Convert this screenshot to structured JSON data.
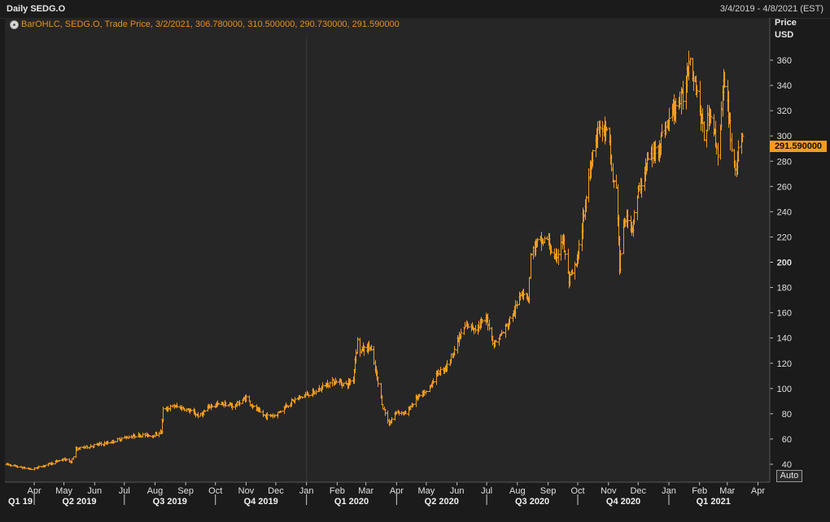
{
  "header": {
    "title": "Daily SEDG.O",
    "date_range": "3/4/2019 - 4/8/2021 (EST)"
  },
  "legend": {
    "text": "BarOHLC, SEDG.O, Trade Price, 3/2/2021, 306.780000, 310.500000, 290.730000, 291.590000"
  },
  "axis": {
    "y_title_line1": "Price",
    "y_title_line2": "USD",
    "last_price_label": "291.590000",
    "auto_label": "Auto"
  },
  "colors": {
    "bars": "#f39c1f",
    "background": "#262626",
    "accent": "#f39c1f"
  },
  "chart_data": {
    "type": "bar",
    "series_name": "SEDG.O",
    "ylim": [
      30,
      380
    ],
    "y_ticks": [
      40,
      60,
      80,
      100,
      120,
      140,
      160,
      180,
      200,
      220,
      240,
      260,
      280,
      300,
      320,
      340,
      360
    ],
    "last_price": 291.59,
    "month_labels": [
      "Apr",
      "May",
      "Jun",
      "Jul",
      "Aug",
      "Sep",
      "Oct",
      "Nov",
      "Dec",
      "Jan",
      "Feb",
      "Mar",
      "Apr",
      "May",
      "Jun",
      "Jul",
      "Aug",
      "Sep",
      "Oct",
      "Nov",
      "Dec",
      "Jan",
      "Feb",
      "Mar",
      "Apr"
    ],
    "quarter_labels": [
      "Q1 19",
      "Q2 2019",
      "Q3 2019",
      "Q4 2019",
      "Q1 2020",
      "Q2 2020",
      "Q3 2020",
      "Q4 2020",
      "Q1 2021"
    ],
    "x_start": "2019-03-04",
    "x_end": "2021-04-08",
    "price_points": [
      [
        "2019-03-04",
        40
      ],
      [
        "2019-03-15",
        38
      ],
      [
        "2019-03-29",
        36
      ],
      [
        "2019-04-15",
        40
      ],
      [
        "2019-04-30",
        44
      ],
      [
        "2019-05-08",
        42
      ],
      [
        "2019-05-13",
        52
      ],
      [
        "2019-05-31",
        55
      ],
      [
        "2019-06-15",
        57
      ],
      [
        "2019-06-30",
        61
      ],
      [
        "2019-07-15",
        63
      ],
      [
        "2019-07-31",
        63
      ],
      [
        "2019-08-07",
        66
      ],
      [
        "2019-08-09",
        83
      ],
      [
        "2019-08-20",
        86
      ],
      [
        "2019-08-31",
        84
      ],
      [
        "2019-09-15",
        78
      ],
      [
        "2019-09-25",
        86
      ],
      [
        "2019-10-08",
        88
      ],
      [
        "2019-10-20",
        86
      ],
      [
        "2019-11-01",
        93
      ],
      [
        "2019-11-08",
        85
      ],
      [
        "2019-11-20",
        78
      ],
      [
        "2019-12-01",
        79
      ],
      [
        "2019-12-10",
        86
      ],
      [
        "2019-12-20",
        91
      ],
      [
        "2019-12-31",
        95
      ],
      [
        "2020-01-10",
        97
      ],
      [
        "2020-01-20",
        103
      ],
      [
        "2020-01-31",
        106
      ],
      [
        "2020-02-10",
        103
      ],
      [
        "2020-02-17",
        108
      ],
      [
        "2020-02-21",
        138
      ],
      [
        "2020-02-24",
        130
      ],
      [
        "2020-03-05",
        133
      ],
      [
        "2020-03-10",
        115
      ],
      [
        "2020-03-18",
        85
      ],
      [
        "2020-03-24",
        72
      ],
      [
        "2020-04-01",
        82
      ],
      [
        "2020-04-10",
        80
      ],
      [
        "2020-04-20",
        92
      ],
      [
        "2020-05-01",
        97
      ],
      [
        "2020-05-12",
        112
      ],
      [
        "2020-05-22",
        118
      ],
      [
        "2020-06-01",
        137
      ],
      [
        "2020-06-10",
        150
      ],
      [
        "2020-06-20",
        148
      ],
      [
        "2020-07-01",
        155
      ],
      [
        "2020-07-08",
        135
      ],
      [
        "2020-07-20",
        148
      ],
      [
        "2020-07-31",
        165
      ],
      [
        "2020-08-05",
        178
      ],
      [
        "2020-08-12",
        172
      ],
      [
        "2020-08-14",
        205
      ],
      [
        "2020-08-20",
        215
      ],
      [
        "2020-08-31",
        218
      ],
      [
        "2020-09-08",
        200
      ],
      [
        "2020-09-15",
        220
      ],
      [
        "2020-09-22",
        185
      ],
      [
        "2020-09-30",
        200
      ],
      [
        "2020-10-08",
        245
      ],
      [
        "2020-10-15",
        285
      ],
      [
        "2020-10-22",
        308
      ],
      [
        "2020-11-01",
        300
      ],
      [
        "2020-11-05",
        265
      ],
      [
        "2020-11-09",
        258
      ],
      [
        "2020-11-12",
        195
      ],
      [
        "2020-11-17",
        235
      ],
      [
        "2020-11-25",
        228
      ],
      [
        "2020-12-01",
        255
      ],
      [
        "2020-12-10",
        280
      ],
      [
        "2020-12-20",
        290
      ],
      [
        "2020-12-31",
        312
      ],
      [
        "2021-01-08",
        325
      ],
      [
        "2021-01-15",
        330
      ],
      [
        "2021-01-22",
        365
      ],
      [
        "2021-01-29",
        335
      ],
      [
        "2021-02-05",
        300
      ],
      [
        "2021-02-12",
        320
      ],
      [
        "2021-02-19",
        285
      ],
      [
        "2021-02-25",
        340
      ],
      [
        "2021-03-02",
        320
      ],
      [
        "2021-03-05",
        290
      ],
      [
        "2021-03-09",
        275
      ],
      [
        "2021-03-16",
        300
      ]
    ]
  }
}
